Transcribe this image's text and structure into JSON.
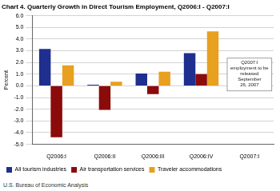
{
  "chart_data": {
    "type": "bar",
    "title": "Chart 4. Quarterly Growth in Direct Tourism Employment, Q2006:I - Q2007:I",
    "y_label": "Percent",
    "categories": [
      "Q2006:I",
      "Q2006:II",
      "Q2006:III",
      "Q2006:IV",
      "Q2007:I"
    ],
    "series": [
      {
        "name": "All tourism industries",
        "color": "#1f2f8f",
        "values": [
          3.15,
          0.1,
          1.05,
          2.8,
          null
        ]
      },
      {
        "name": "Air transportation services",
        "color": "#8b0a0a",
        "values": [
          -4.4,
          -2.05,
          -0.7,
          1.0,
          null
        ]
      },
      {
        "name": "Traveler accommodations",
        "color": "#e8a020",
        "values": [
          1.75,
          0.35,
          1.2,
          4.65,
          null
        ]
      }
    ],
    "ylim": [
      -5,
      6
    ],
    "yticks": [
      {
        "value": -5,
        "label": "-5.0"
      },
      {
        "value": -4,
        "label": "-4.0"
      },
      {
        "value": -3,
        "label": "-3.0"
      },
      {
        "value": -2,
        "label": "-2.0"
      },
      {
        "value": -1,
        "label": "-1.0"
      },
      {
        "value": 0,
        "label": "0.0"
      },
      {
        "value": 1,
        "label": "1.0"
      },
      {
        "value": 2,
        "label": "2.0"
      },
      {
        "value": 3,
        "label": "3.0"
      },
      {
        "value": 4,
        "label": "4.0"
      },
      {
        "value": 5,
        "label": "5.0"
      },
      {
        "value": 6,
        "label": "6.0"
      }
    ],
    "grid": true,
    "legend": "bottom",
    "annotation": [
      "Q2007:I",
      "employment to be",
      "released",
      "September",
      "26, 2007"
    ],
    "source": "U.S. Bureau of Economic Analysis"
  }
}
